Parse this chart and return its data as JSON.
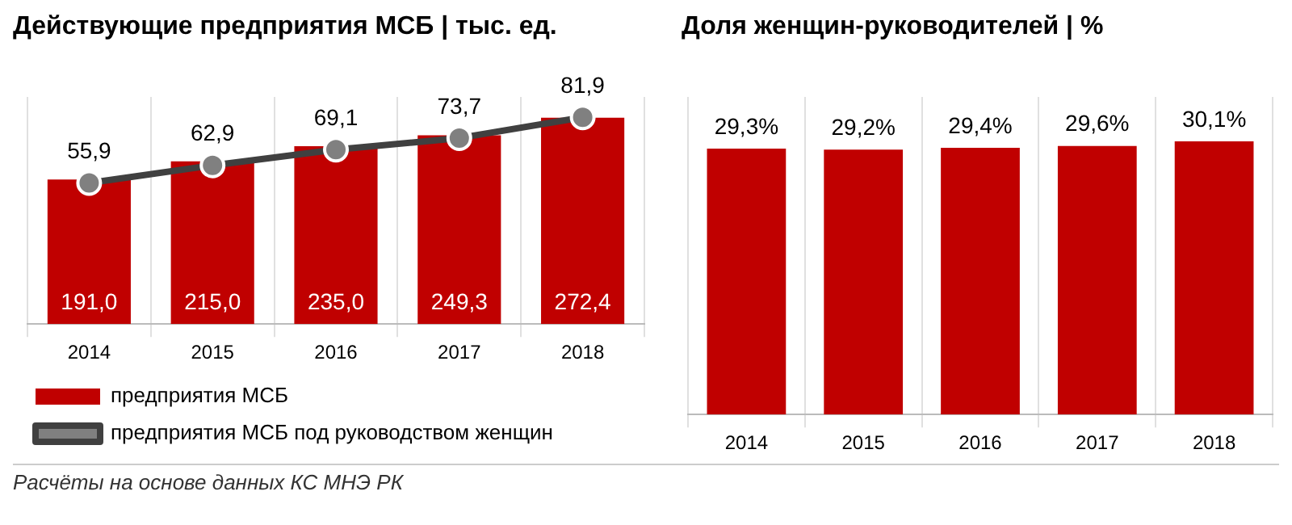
{
  "chart_data": [
    {
      "type": "bar",
      "title": "Действующие предприятия МСБ | тыс. ед.",
      "categories": [
        "2014",
        "2015",
        "2016",
        "2017",
        "2018"
      ],
      "series": [
        {
          "name": "предприятия МСБ",
          "color": "#c00000",
          "values": [
            191.0,
            215.0,
            235.0,
            249.3,
            272.4
          ],
          "value_labels": [
            "191,0",
            "215,0",
            "235,0",
            "249,3",
            "272,4"
          ]
        },
        {
          "name": "предприятия МСБ под руководством женщин",
          "type": "line",
          "axis": "y2",
          "color": "#404040",
          "marker": "circle",
          "values": [
            55.9,
            62.9,
            69.1,
            73.7,
            81.9
          ],
          "value_labels": [
            "55,9",
            "62,9",
            "69,1",
            "73,7",
            "81,9"
          ]
        }
      ],
      "grid": "x",
      "legend": "bottom",
      "annotations": [
        "Расчёты на основе данных КС МНЭ РК"
      ]
    },
    {
      "type": "bar",
      "title": "Доля женщин-руководителей | %",
      "categories": [
        "2014",
        "2015",
        "2016",
        "2017",
        "2018"
      ],
      "series": [
        {
          "color": "#c00000",
          "values": [
            29.3,
            29.2,
            29.4,
            29.6,
            30.1
          ],
          "value_labels": [
            "29,3%",
            "29,2%",
            "29,4%",
            "29,6%",
            "30,1%"
          ]
        }
      ],
      "grid": "x",
      "legend": false
    }
  ]
}
